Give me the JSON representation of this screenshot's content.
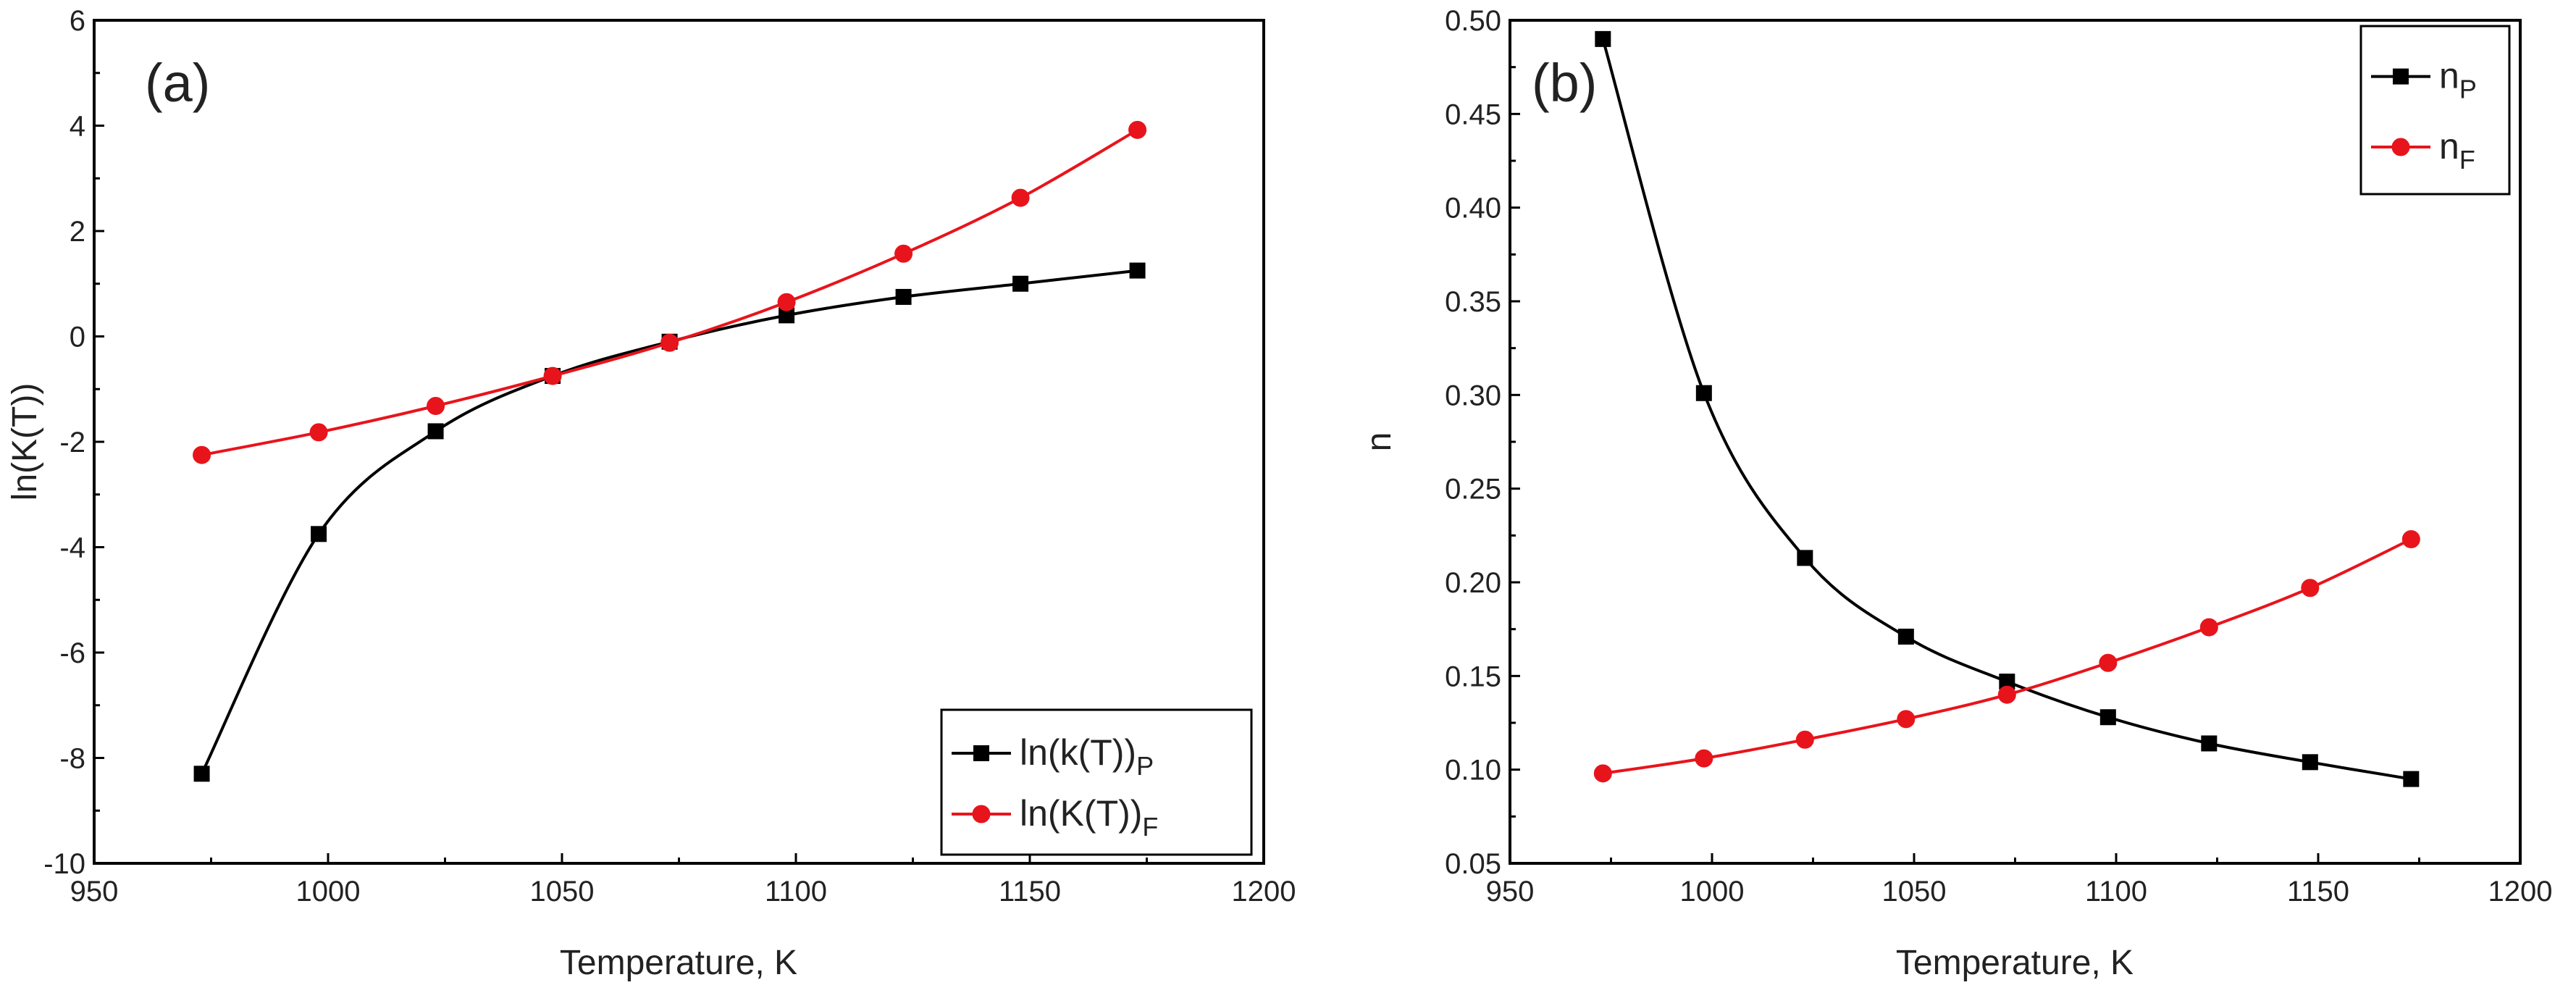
{
  "chart_data": [
    {
      "type": "line",
      "panel_label": "(a)",
      "xlabel": "Temperature, K",
      "ylabel": "ln(K(T))",
      "xlim": [
        950,
        1200
      ],
      "ylim": [
        -10,
        6
      ],
      "xticks": [
        950,
        1000,
        1050,
        1100,
        1150,
        1200
      ],
      "yticks": [
        -10,
        -8,
        -6,
        -4,
        -2,
        0,
        2,
        4,
        6
      ],
      "legend_position": "bottom-right",
      "series": [
        {
          "name": "ln(k(T))",
          "subscript": "P",
          "marker": "square",
          "color": "#000000",
          "x": [
            973,
            998,
            1023,
            1048,
            1073,
            1098,
            1123,
            1148,
            1173
          ],
          "y": [
            -8.3,
            -3.75,
            -1.8,
            -0.75,
            -0.1,
            0.4,
            0.75,
            1.0,
            1.25
          ]
        },
        {
          "name": "ln(K(T))",
          "subscript": "F",
          "marker": "circle",
          "color": "#e8141c",
          "x": [
            973,
            998,
            1023,
            1048,
            1073,
            1098,
            1123,
            1148,
            1173
          ],
          "y": [
            -2.25,
            -1.82,
            -1.32,
            -0.75,
            -0.12,
            0.65,
            1.57,
            2.63,
            3.92
          ]
        }
      ]
    },
    {
      "type": "line",
      "panel_label": "(b)",
      "xlabel": "Temperature, K",
      "ylabel": "n",
      "xlim": [
        950,
        1200
      ],
      "ylim": [
        0.05,
        0.5
      ],
      "xticks": [
        950,
        1000,
        1050,
        1100,
        1150,
        1200
      ],
      "yticks": [
        0.05,
        0.1,
        0.15,
        0.2,
        0.25,
        0.3,
        0.35,
        0.4,
        0.45,
        0.5
      ],
      "legend_position": "top-right",
      "series": [
        {
          "name": "n",
          "subscript": "P",
          "marker": "square",
          "color": "#000000",
          "x": [
            973,
            998,
            1023,
            1048,
            1073,
            1098,
            1123,
            1148,
            1173
          ],
          "y": [
            0.49,
            0.301,
            0.213,
            0.171,
            0.147,
            0.128,
            0.114,
            0.104,
            0.095
          ]
        },
        {
          "name": "n",
          "subscript": "F",
          "marker": "circle",
          "color": "#e8141c",
          "x": [
            973,
            998,
            1023,
            1048,
            1073,
            1098,
            1123,
            1148,
            1173
          ],
          "y": [
            0.098,
            0.106,
            0.116,
            0.127,
            0.14,
            0.157,
            0.176,
            0.197,
            0.223
          ]
        }
      ]
    }
  ]
}
